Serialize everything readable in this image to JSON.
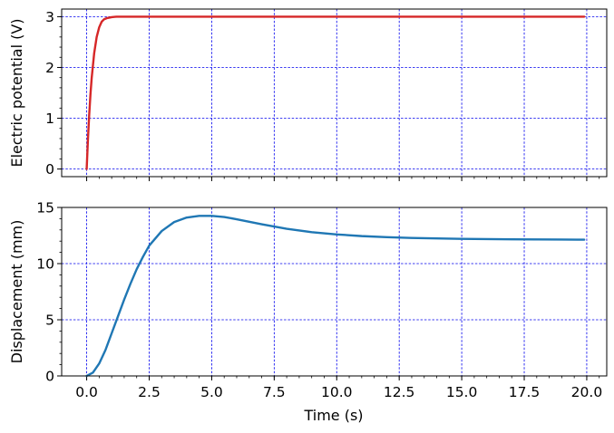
{
  "chart_data": [
    {
      "type": "line",
      "ylabel": "Electric potential (V)",
      "xlabel": "",
      "xlim": [
        -1,
        20.8
      ],
      "ylim": [
        -0.15,
        3.15
      ],
      "xticks": [
        0,
        2.5,
        5,
        7.5,
        10,
        12.5,
        15,
        17.5,
        20
      ],
      "xtick_labels_visible": false,
      "yticks": [
        0,
        1,
        2,
        3
      ],
      "ytick_labels": [
        "0",
        "1",
        "2",
        "3"
      ],
      "grid": true,
      "grid_color": "#0000ee",
      "series": [
        {
          "color": "#d62728",
          "x": [
            0,
            0.05,
            0.1,
            0.15,
            0.2,
            0.3,
            0.4,
            0.5,
            0.6,
            0.7,
            0.8,
            1.0,
            1.2,
            1.5,
            2.0,
            3.0,
            5.0,
            10.0,
            15.0,
            19.9
          ],
          "y": [
            0,
            0.58,
            1.06,
            1.46,
            1.79,
            2.28,
            2.6,
            2.79,
            2.9,
            2.95,
            2.97,
            2.99,
            3.0,
            3.0,
            3.0,
            3.0,
            3.0,
            3.0,
            3.0,
            3.0
          ]
        }
      ]
    },
    {
      "type": "line",
      "ylabel": "Displacement (mm)",
      "xlabel": "Time (s)",
      "xlim": [
        -1,
        20.8
      ],
      "ylim": [
        0,
        15
      ],
      "xticks": [
        0,
        2.5,
        5,
        7.5,
        10,
        12.5,
        15,
        17.5,
        20
      ],
      "xtick_labels": [
        "0.0",
        "2.5",
        "5.0",
        "7.5",
        "10.0",
        "12.5",
        "15.0",
        "17.5",
        "20.0"
      ],
      "yticks": [
        0,
        5,
        10,
        15
      ],
      "ytick_labels": [
        "0",
        "5",
        "10",
        "15"
      ],
      "grid": true,
      "grid_color": "#0000ee",
      "series": [
        {
          "color": "#1f77b4",
          "x": [
            0,
            0.25,
            0.5,
            0.75,
            1.0,
            1.25,
            1.5,
            1.75,
            2.0,
            2.25,
            2.5,
            3.0,
            3.5,
            4.0,
            4.5,
            5.0,
            5.5,
            6.0,
            7.0,
            8.0,
            9.0,
            10.0,
            11.0,
            12.0,
            13.0,
            14.0,
            15.0,
            16.0,
            17.0,
            18.0,
            19.0,
            19.9
          ],
          "y": [
            0,
            0.3,
            1.1,
            2.3,
            3.8,
            5.3,
            6.8,
            8.2,
            9.5,
            10.6,
            11.6,
            12.9,
            13.7,
            14.1,
            14.25,
            14.25,
            14.15,
            13.95,
            13.5,
            13.1,
            12.8,
            12.6,
            12.45,
            12.35,
            12.28,
            12.24,
            12.2,
            12.18,
            12.16,
            12.15,
            12.14,
            12.13
          ]
        }
      ]
    }
  ]
}
